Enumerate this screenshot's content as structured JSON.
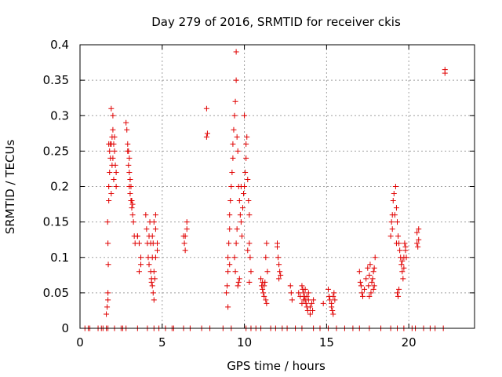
{
  "chart_data": {
    "type": "scatter",
    "title": "Day 279 of 2016, SRMTID for receiver ckis",
    "xlabel": "GPS time / hours",
    "ylabel": "SRMTID / TECUs",
    "xlim": [
      0,
      24
    ],
    "ylim": [
      0,
      0.4
    ],
    "xticks": [
      0,
      5,
      10,
      15,
      20
    ],
    "xtick_labels": [
      "0",
      "5",
      "10",
      "15",
      "20"
    ],
    "yticks": [
      0,
      0.05,
      0.1,
      0.15,
      0.2,
      0.25,
      0.3,
      0.35,
      0.4
    ],
    "ytick_labels": [
      "0",
      "0.05",
      "0.1",
      "0.15",
      "0.2",
      "0.25",
      "0.3",
      "0.35",
      "0.4"
    ],
    "grid": true,
    "marker": "+",
    "color": "#e00000",
    "series": [
      {
        "name": "SRMTID",
        "points": [
          [
            0.3,
            0
          ],
          [
            0.5,
            0
          ],
          [
            0.6,
            0
          ],
          [
            1.1,
            0
          ],
          [
            1.3,
            0
          ],
          [
            1.4,
            0
          ],
          [
            1.6,
            0
          ],
          [
            1.7,
            0
          ],
          [
            2.1,
            0
          ],
          [
            2.5,
            0
          ],
          [
            2.6,
            0
          ],
          [
            2.8,
            0
          ],
          [
            3.5,
            0
          ],
          [
            4.1,
            0
          ],
          [
            4.5,
            0
          ],
          [
            4.8,
            0
          ],
          [
            5.2,
            0
          ],
          [
            5.6,
            0
          ],
          [
            5.7,
            0
          ],
          [
            6.3,
            0
          ],
          [
            6.7,
            0
          ],
          [
            7.4,
            0
          ],
          [
            7.9,
            0
          ],
          [
            8.7,
            0
          ],
          [
            9.2,
            0
          ],
          [
            10.1,
            0
          ],
          [
            10.4,
            0
          ],
          [
            10.7,
            0
          ],
          [
            11.0,
            0
          ],
          [
            11.6,
            0
          ],
          [
            11.9,
            0
          ],
          [
            12.3,
            0
          ],
          [
            12.6,
            0
          ],
          [
            13.1,
            0
          ],
          [
            13.5,
            0
          ],
          [
            14.2,
            0
          ],
          [
            14.6,
            0
          ],
          [
            15.1,
            0
          ],
          [
            15.6,
            0
          ],
          [
            16.1,
            0
          ],
          [
            16.6,
            0
          ],
          [
            17.0,
            0
          ],
          [
            17.6,
            0
          ],
          [
            18.3,
            0
          ],
          [
            18.9,
            0
          ],
          [
            19.3,
            0
          ],
          [
            19.7,
            0
          ],
          [
            20.2,
            0
          ],
          [
            20.4,
            0
          ],
          [
            20.9,
            0
          ],
          [
            21.3,
            0
          ],
          [
            21.6,
            0
          ],
          [
            22.1,
            0
          ],
          [
            1.6,
            0.02
          ],
          [
            1.65,
            0.03
          ],
          [
            1.7,
            0.04
          ],
          [
            1.7,
            0.05
          ],
          [
            1.72,
            0.09
          ],
          [
            1.7,
            0.12
          ],
          [
            1.68,
            0.15
          ],
          [
            1.75,
            0.18
          ],
          [
            1.75,
            0.2
          ],
          [
            1.8,
            0.22
          ],
          [
            1.85,
            0.24
          ],
          [
            1.9,
            0.26
          ],
          [
            1.95,
            0.27
          ],
          [
            2.0,
            0.28
          ],
          [
            2.0,
            0.3
          ],
          [
            1.9,
            0.31
          ],
          [
            2.05,
            0.26
          ],
          [
            2.1,
            0.25
          ],
          [
            2.15,
            0.23
          ],
          [
            2.2,
            0.22
          ],
          [
            1.8,
            0.25
          ],
          [
            1.85,
            0.26
          ],
          [
            2.0,
            0.24
          ],
          [
            2.05,
            0.21
          ],
          [
            1.9,
            0.19
          ],
          [
            1.95,
            0.23
          ],
          [
            2.1,
            0.27
          ],
          [
            2.2,
            0.2
          ],
          [
            1.75,
            0.26
          ],
          [
            2.8,
            0.29
          ],
          [
            2.85,
            0.28
          ],
          [
            2.9,
            0.26
          ],
          [
            2.95,
            0.25
          ],
          [
            3.0,
            0.24
          ],
          [
            3.0,
            0.22
          ],
          [
            3.05,
            0.21
          ],
          [
            3.1,
            0.2
          ],
          [
            3.1,
            0.18
          ],
          [
            3.15,
            0.17
          ],
          [
            3.2,
            0.16
          ],
          [
            3.25,
            0.15
          ],
          [
            3.3,
            0.13
          ],
          [
            3.35,
            0.12
          ],
          [
            2.9,
            0.25
          ],
          [
            2.95,
            0.23
          ],
          [
            3.05,
            0.19
          ],
          [
            3.15,
            0.18
          ],
          [
            3.2,
            0.175
          ],
          [
            3.0,
            0.2
          ],
          [
            3.5,
            0.13
          ],
          [
            3.6,
            0.12
          ],
          [
            3.7,
            0.1
          ],
          [
            3.7,
            0.09
          ],
          [
            3.6,
            0.08
          ],
          [
            3.5,
            0.13
          ],
          [
            4.0,
            0.16
          ],
          [
            4.05,
            0.14
          ],
          [
            4.1,
            0.12
          ],
          [
            4.15,
            0.1
          ],
          [
            4.2,
            0.09
          ],
          [
            4.3,
            0.08
          ],
          [
            4.35,
            0.07
          ],
          [
            4.4,
            0.06
          ],
          [
            4.45,
            0.05
          ],
          [
            4.5,
            0.04
          ],
          [
            4.3,
            0.12
          ],
          [
            4.4,
            0.13
          ],
          [
            4.5,
            0.15
          ],
          [
            4.6,
            0.16
          ],
          [
            4.6,
            0.14
          ],
          [
            4.7,
            0.12
          ],
          [
            4.7,
            0.11
          ],
          [
            4.2,
            0.13
          ],
          [
            4.4,
            0.1
          ],
          [
            4.5,
            0.08
          ],
          [
            4.55,
            0.07
          ],
          [
            4.25,
            0.15
          ],
          [
            4.35,
            0.065
          ],
          [
            4.45,
            0.12
          ],
          [
            4.6,
            0.1
          ],
          [
            6.3,
            0.13
          ],
          [
            6.35,
            0.12
          ],
          [
            6.4,
            0.11
          ],
          [
            6.5,
            0.14
          ],
          [
            6.5,
            0.15
          ],
          [
            6.4,
            0.13
          ],
          [
            7.7,
            0.31
          ],
          [
            7.7,
            0.27
          ],
          [
            7.75,
            0.275
          ],
          [
            8.9,
            0.05
          ],
          [
            8.95,
            0.06
          ],
          [
            9.0,
            0.08
          ],
          [
            9.0,
            0.1
          ],
          [
            9.05,
            0.12
          ],
          [
            9.1,
            0.14
          ],
          [
            9.1,
            0.16
          ],
          [
            9.15,
            0.18
          ],
          [
            9.2,
            0.2
          ],
          [
            9.25,
            0.22
          ],
          [
            9.3,
            0.24
          ],
          [
            9.3,
            0.26
          ],
          [
            9.35,
            0.28
          ],
          [
            9.4,
            0.3
          ],
          [
            9.45,
            0.32
          ],
          [
            9.5,
            0.35
          ],
          [
            9.5,
            0.39
          ],
          [
            9.55,
            0.27
          ],
          [
            9.6,
            0.25
          ],
          [
            9.65,
            0.2
          ],
          [
            9.7,
            0.18
          ],
          [
            9.75,
            0.16
          ],
          [
            9.8,
            0.15
          ],
          [
            9.9,
            0.17
          ],
          [
            9.95,
            0.19
          ],
          [
            10.0,
            0.2
          ],
          [
            10.05,
            0.22
          ],
          [
            10.1,
            0.24
          ],
          [
            10.1,
            0.26
          ],
          [
            10.0,
            0.3
          ],
          [
            10.15,
            0.27
          ],
          [
            10.2,
            0.21
          ],
          [
            10.25,
            0.18
          ],
          [
            10.3,
            0.16
          ],
          [
            10.3,
            0.12
          ],
          [
            10.35,
            0.1
          ],
          [
            10.4,
            0.08
          ],
          [
            10.3,
            0.065
          ],
          [
            9.6,
            0.06
          ],
          [
            9.65,
            0.065
          ],
          [
            9.7,
            0.07
          ],
          [
            9.4,
            0.1
          ],
          [
            9.5,
            0.12
          ],
          [
            9.55,
            0.14
          ],
          [
            9.45,
            0.08
          ],
          [
            9.0,
            0.03
          ],
          [
            9.1,
            0.09
          ],
          [
            9.8,
            0.2
          ],
          [
            9.85,
            0.13
          ],
          [
            10.2,
            0.11
          ],
          [
            11.0,
            0.07
          ],
          [
            11.05,
            0.06
          ],
          [
            11.1,
            0.055
          ],
          [
            11.15,
            0.05
          ],
          [
            11.2,
            0.045
          ],
          [
            11.3,
            0.04
          ],
          [
            11.25,
            0.065
          ],
          [
            11.3,
            0.1
          ],
          [
            11.35,
            0.12
          ],
          [
            11.4,
            0.08
          ],
          [
            11.2,
            0.06
          ],
          [
            11.1,
            0.065
          ],
          [
            11.35,
            0.035
          ],
          [
            12.0,
            0.12
          ],
          [
            12.05,
            0.1
          ],
          [
            12.1,
            0.09
          ],
          [
            12.15,
            0.08
          ],
          [
            12.2,
            0.075
          ],
          [
            12.1,
            0.07
          ],
          [
            12.0,
            0.115
          ],
          [
            12.8,
            0.06
          ],
          [
            12.85,
            0.05
          ],
          [
            12.9,
            0.04
          ],
          [
            13.3,
            0.05
          ],
          [
            13.4,
            0.045
          ],
          [
            13.5,
            0.06
          ],
          [
            13.55,
            0.055
          ],
          [
            13.6,
            0.05
          ],
          [
            13.65,
            0.045
          ],
          [
            13.7,
            0.04
          ],
          [
            13.75,
            0.035
          ],
          [
            13.8,
            0.03
          ],
          [
            13.85,
            0.025
          ],
          [
            13.9,
            0.04
          ],
          [
            14.0,
            0.03
          ],
          [
            14.1,
            0.035
          ],
          [
            14.2,
            0.04
          ],
          [
            13.7,
            0.055
          ],
          [
            13.8,
            0.045
          ],
          [
            13.9,
            0.05
          ],
          [
            13.5,
            0.035
          ],
          [
            13.6,
            0.04
          ],
          [
            14.0,
            0.02
          ],
          [
            14.15,
            0.025
          ],
          [
            14.8,
            0.035
          ],
          [
            15.1,
            0.055
          ],
          [
            15.15,
            0.045
          ],
          [
            15.2,
            0.04
          ],
          [
            15.3,
            0.035
          ],
          [
            15.3,
            0.03
          ],
          [
            15.35,
            0.025
          ],
          [
            15.4,
            0.02
          ],
          [
            15.4,
            0.045
          ],
          [
            15.45,
            0.05
          ],
          [
            15.5,
            0.04
          ],
          [
            17.0,
            0.08
          ],
          [
            17.05,
            0.065
          ],
          [
            17.1,
            0.06
          ],
          [
            17.15,
            0.05
          ],
          [
            17.2,
            0.045
          ],
          [
            17.3,
            0.055
          ],
          [
            17.4,
            0.07
          ],
          [
            17.5,
            0.085
          ],
          [
            17.55,
            0.06
          ],
          [
            17.6,
            0.075
          ],
          [
            17.65,
            0.09
          ],
          [
            17.7,
            0.05
          ],
          [
            17.75,
            0.065
          ],
          [
            17.8,
            0.07
          ],
          [
            17.85,
            0.08
          ],
          [
            17.9,
            0.085
          ],
          [
            17.95,
            0.1
          ],
          [
            17.9,
            0.06
          ],
          [
            17.85,
            0.055
          ],
          [
            17.6,
            0.045
          ],
          [
            18.9,
            0.13
          ],
          [
            18.95,
            0.15
          ],
          [
            19.0,
            0.16
          ],
          [
            19.05,
            0.18
          ],
          [
            19.1,
            0.19
          ],
          [
            19.2,
            0.2
          ],
          [
            19.25,
            0.17
          ],
          [
            19.3,
            0.15
          ],
          [
            19.35,
            0.13
          ],
          [
            19.4,
            0.12
          ],
          [
            19.45,
            0.11
          ],
          [
            19.5,
            0.1
          ],
          [
            19.55,
            0.09
          ],
          [
            19.6,
            0.08
          ],
          [
            19.65,
            0.07
          ],
          [
            19.7,
            0.1
          ],
          [
            19.75,
            0.12
          ],
          [
            19.8,
            0.115
          ],
          [
            19.85,
            0.1
          ],
          [
            19.3,
            0.05
          ],
          [
            19.35,
            0.045
          ],
          [
            19.4,
            0.055
          ],
          [
            19.25,
            0.12
          ],
          [
            19.15,
            0.16
          ],
          [
            19.0,
            0.14
          ],
          [
            19.6,
            0.095
          ],
          [
            19.7,
            0.085
          ],
          [
            19.8,
            0.11
          ],
          [
            20.5,
            0.135
          ],
          [
            20.5,
            0.12
          ],
          [
            20.55,
            0.115
          ],
          [
            20.6,
            0.125
          ],
          [
            20.6,
            0.14
          ],
          [
            22.2,
            0.36
          ],
          [
            22.2,
            0.365
          ]
        ]
      }
    ]
  }
}
